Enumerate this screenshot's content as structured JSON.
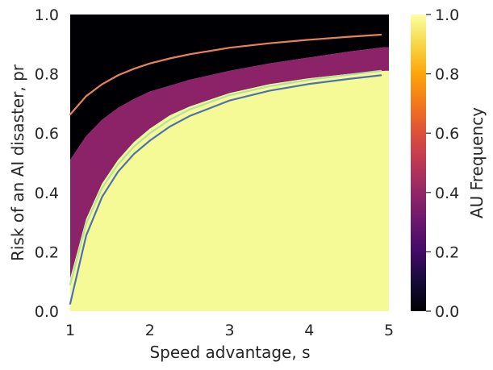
{
  "chart_data": {
    "type": "heatmap",
    "title": "",
    "xlabel": "Speed advantage, s",
    "ylabel": "Risk of an AI disaster, pr",
    "xlim": [
      1,
      5
    ],
    "ylim": [
      0,
      1
    ],
    "xticks": [
      "1",
      "2",
      "3",
      "4",
      "5"
    ],
    "yticks": [
      "0.0",
      "0.2",
      "0.4",
      "0.6",
      "0.8",
      "1.0"
    ],
    "colorbar": {
      "label": "AU Frequency",
      "colormap": "inferno",
      "range": [
        0,
        1
      ],
      "ticks": [
        "0.0",
        "0.2",
        "0.4",
        "0.6",
        "0.8",
        "1.0"
      ]
    },
    "regions": [
      {
        "value": 0.0,
        "color": "#000004",
        "y_lower": "upper_boundary",
        "y_upper": 1.0
      },
      {
        "value": 0.38,
        "color": "#8c2369",
        "y_lower": "lower_boundary",
        "y_upper": "upper_boundary"
      },
      {
        "value": 1.0,
        "color": "#f5fa97",
        "y_lower": 0.0,
        "y_upper": "lower_boundary"
      }
    ],
    "boundaries": {
      "x": [
        1.0,
        1.2,
        1.4,
        1.6,
        1.8,
        2.0,
        2.25,
        2.5,
        3.0,
        3.5,
        4.0,
        4.5,
        4.95
      ],
      "lower_boundary": [
        0.11,
        0.31,
        0.43,
        0.51,
        0.57,
        0.615,
        0.66,
        0.69,
        0.735,
        0.765,
        0.785,
        0.8,
        0.81
      ],
      "upper_boundary": [
        0.51,
        0.59,
        0.645,
        0.685,
        0.715,
        0.74,
        0.76,
        0.78,
        0.81,
        0.835,
        0.855,
        0.875,
        0.89
      ]
    },
    "series": [
      {
        "color": "#e8825a",
        "x": [
          1.0,
          1.2,
          1.4,
          1.6,
          1.8,
          2.0,
          2.25,
          2.5,
          3.0,
          3.5,
          4.0,
          4.5,
          4.9
        ],
        "y": [
          0.663,
          0.725,
          0.765,
          0.795,
          0.817,
          0.835,
          0.852,
          0.866,
          0.888,
          0.903,
          0.915,
          0.925,
          0.932
        ]
      },
      {
        "color": "#b4e0a0",
        "x": [
          1.0,
          1.2,
          1.4,
          1.6,
          1.8,
          2.0,
          2.25,
          2.5,
          3.0,
          3.5,
          4.0,
          4.5,
          4.9
        ],
        "y": [
          0.09,
          0.295,
          0.415,
          0.495,
          0.555,
          0.6,
          0.645,
          0.68,
          0.728,
          0.758,
          0.78,
          0.797,
          0.81
        ]
      },
      {
        "color": "#4c72b0",
        "x": [
          1.0,
          1.2,
          1.4,
          1.6,
          1.8,
          2.0,
          2.25,
          2.5,
          3.0,
          3.5,
          4.0,
          4.5,
          4.9
        ],
        "y": [
          0.025,
          0.255,
          0.385,
          0.47,
          0.53,
          0.575,
          0.622,
          0.658,
          0.71,
          0.743,
          0.766,
          0.783,
          0.795
        ]
      }
    ]
  }
}
